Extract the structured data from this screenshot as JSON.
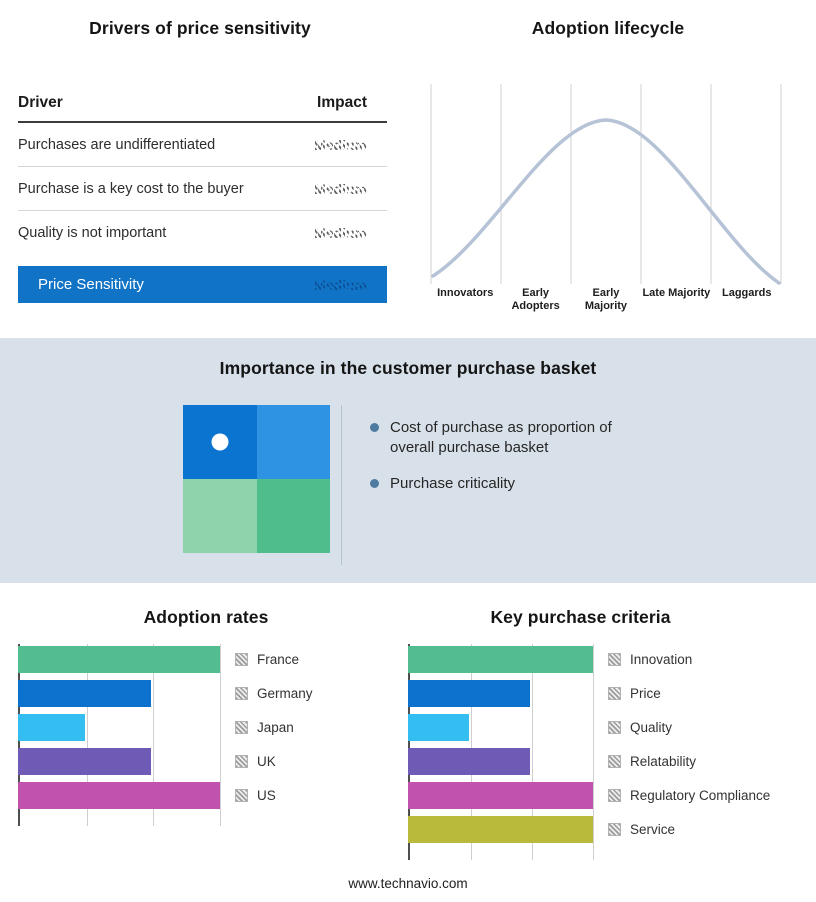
{
  "page": {
    "footer_url": "www.technavio.com"
  },
  "colors": {
    "highlight_blue": "#1173C5",
    "band_background": "#D8E1EA",
    "curve": "#B6C3D7",
    "bullet_dot": "#4D7BA2",
    "quadrant": {
      "top_left": "#0B74D0",
      "top_right": "#2D93E2",
      "bottom_left": "#8FD3AC",
      "bottom_right": "#4FBE8C"
    }
  },
  "drivers_table": {
    "title": "Drivers of price sensitivity",
    "columns": {
      "driver": "Driver",
      "impact": "Impact"
    },
    "rows": [
      {
        "driver": "Purchases are undifferentiated",
        "impact": "Medium"
      },
      {
        "driver": "Purchase is a key cost to the buyer",
        "impact": "Medium"
      },
      {
        "driver": "Quality is not important",
        "impact": "Medium"
      }
    ],
    "highlight_row": {
      "driver": "Price Sensitivity",
      "impact": "Medium"
    }
  },
  "purchase_basket": {
    "title": "Importance in the customer purchase basket",
    "bullets": [
      "Cost of purchase as proportion of overall purchase basket",
      "Purchase criticality"
    ]
  },
  "chart_data": [
    {
      "type": "line",
      "title": "Adoption lifecycle",
      "curve": "bell",
      "categories": [
        "Innovators",
        "Early Adopters",
        "Early Majority",
        "Late Majority",
        "Laggards"
      ],
      "values": [
        10,
        55,
        100,
        55,
        10
      ],
      "line_color": "#B6C3D7",
      "grid": true,
      "legend_position": "none"
    },
    {
      "type": "bar",
      "orientation": "horizontal",
      "title": "Adoption rates",
      "categories": [
        "France",
        "Germany",
        "Japan",
        "UK",
        "US"
      ],
      "values": [
        100,
        66,
        33,
        66,
        100
      ],
      "xlim": [
        0,
        100
      ],
      "grid": true,
      "legend_position": "right",
      "colors": [
        "#52BE8F",
        "#0D72CE",
        "#33BDF0",
        "#6F5BB5",
        "#C153AE"
      ]
    },
    {
      "type": "bar",
      "orientation": "horizontal",
      "title": "Key purchase criteria",
      "categories": [
        "Innovation",
        "Price",
        "Quality",
        "Relatability",
        "Regulatory Compliance",
        "Service"
      ],
      "values": [
        100,
        66,
        33,
        66,
        100,
        100
      ],
      "xlim": [
        0,
        100
      ],
      "grid": true,
      "legend_position": "right",
      "colors": [
        "#52BE8F",
        "#0D72CE",
        "#33BDF0",
        "#6F5BB5",
        "#C153AE",
        "#B9BA3B"
      ]
    }
  ]
}
